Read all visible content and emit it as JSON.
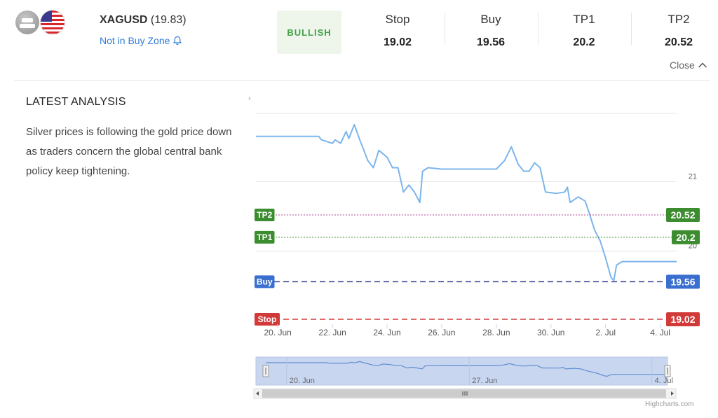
{
  "header": {
    "symbol": "XAGUSD",
    "price": "(19.83)",
    "zone_text": "Not in Buy Zone",
    "sentiment": "BULLISH",
    "close_label": "Close",
    "stats": [
      {
        "label": "Stop",
        "value": "19.02"
      },
      {
        "label": "Buy",
        "value": "19.56"
      },
      {
        "label": "TP1",
        "value": "20.2"
      },
      {
        "label": "TP2",
        "value": "20.52"
      }
    ]
  },
  "analysis": {
    "title": "LATEST ANALYSIS",
    "text": "Silver prices is following the gold price down as traders concern the global central bank policy keep tightening."
  },
  "credit": "Highcharts.com",
  "icons": [
    "silver-flag-icon",
    "us-flag-icon",
    "bell-icon",
    "chevron-up-icon",
    "chevron-right-icon",
    "scroll-left-arrow-icon",
    "scroll-right-arrow-icon",
    "navigator-handle-icon",
    "scrollbar-grip-icon"
  ],
  "colors": {
    "series": "#7cb5ec",
    "tp": "#3c8d2f",
    "buy": "#3b6fcf",
    "stop": "#d23a3a",
    "tp2_line": "#b04a9a",
    "navigator_fill": "#c9d6f0",
    "sentiment_text": "#43a047",
    "sentiment_bg": "#eef6ec",
    "link": "#2f7bd9"
  },
  "chart_data": {
    "type": "line",
    "title": "",
    "xlabel": "",
    "ylabel": "",
    "ylim": [
      18.95,
      21.98
    ],
    "y_ticks": [
      21,
      20
    ],
    "x_ticks": [
      "20. Jun",
      "22. Jun",
      "24. Jun",
      "26. Jun",
      "28. Jun",
      "30. Jun",
      "2. Jul",
      "4. Jul"
    ],
    "x_tick_days": [
      0,
      2,
      4,
      6,
      8,
      10,
      12,
      14
    ],
    "series": [
      {
        "values_by_day": [
          [
            -0.8,
            21.65
          ],
          [
            1.5,
            21.65
          ],
          [
            1.6,
            21.6
          ],
          [
            2.0,
            21.55
          ],
          [
            2.1,
            21.6
          ],
          [
            2.3,
            21.55
          ],
          [
            2.5,
            21.72
          ],
          [
            2.6,
            21.62
          ],
          [
            2.8,
            21.82
          ],
          [
            3.0,
            21.6
          ],
          [
            3.3,
            21.3
          ],
          [
            3.5,
            21.2
          ],
          [
            3.7,
            21.45
          ],
          [
            4.0,
            21.35
          ],
          [
            4.2,
            21.2
          ],
          [
            4.4,
            21.2
          ],
          [
            4.6,
            20.85
          ],
          [
            4.8,
            20.95
          ],
          [
            5.0,
            20.85
          ],
          [
            5.2,
            20.7
          ],
          [
            5.3,
            21.15
          ],
          [
            5.5,
            21.2
          ],
          [
            6.0,
            21.18
          ],
          [
            7.0,
            21.18
          ],
          [
            8.0,
            21.18
          ],
          [
            8.3,
            21.3
          ],
          [
            8.55,
            21.5
          ],
          [
            8.8,
            21.25
          ],
          [
            9.0,
            21.15
          ],
          [
            9.2,
            21.15
          ],
          [
            9.4,
            21.27
          ],
          [
            9.6,
            21.2
          ],
          [
            9.8,
            20.85
          ],
          [
            10.2,
            20.83
          ],
          [
            10.5,
            20.85
          ],
          [
            10.6,
            20.92
          ],
          [
            10.7,
            20.7
          ],
          [
            11.0,
            20.78
          ],
          [
            11.25,
            20.72
          ],
          [
            11.4,
            20.55
          ],
          [
            11.6,
            20.3
          ],
          [
            11.8,
            20.15
          ],
          [
            12.0,
            19.9
          ],
          [
            12.2,
            19.62
          ],
          [
            12.3,
            19.58
          ],
          [
            12.4,
            19.8
          ],
          [
            12.6,
            19.85
          ],
          [
            14.0,
            19.85
          ],
          [
            14.6,
            19.85
          ]
        ]
      }
    ],
    "levels": [
      {
        "name": "TP2",
        "value": 20.52
      },
      {
        "name": "TP1",
        "value": 20.2
      },
      {
        "name": "Buy",
        "value": 19.56
      },
      {
        "name": "Stop",
        "value": 19.02
      }
    ],
    "navigator": {
      "x_ticks": [
        "20. Jun",
        "27. Jun",
        "4. Jul"
      ]
    },
    "grid": true,
    "legend": "none"
  }
}
